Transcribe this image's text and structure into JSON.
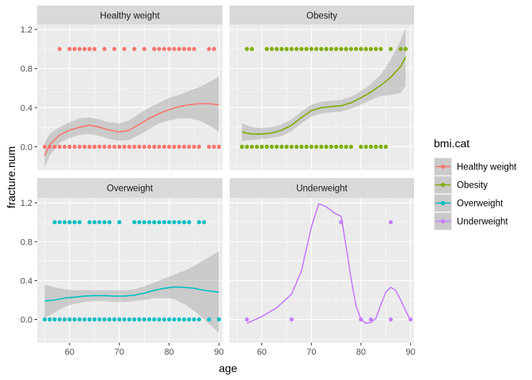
{
  "chart_data": {
    "type": "scatter",
    "facet_by": "bmi.cat",
    "xlabel": "age",
    "ylabel": "fracture.num",
    "xlim": [
      53.5,
      90.7
    ],
    "ylim": [
      -0.24,
      1.25
    ],
    "x_ticks": [
      60,
      70,
      80,
      90
    ],
    "y_ticks": [
      0.0,
      0.4,
      0.8,
      1.2
    ],
    "x_tick_labels": [
      "60",
      "70",
      "80",
      "90"
    ],
    "y_tick_labels": [
      "0.0",
      "0.4",
      "0.8",
      "1.2"
    ],
    "grid": true,
    "legend": {
      "title": "bmi.cat",
      "position": "right",
      "items": [
        "Healthy weight",
        "Obesity",
        "Overweight",
        "Underweight"
      ]
    },
    "panels": [
      {
        "name": "Healthy weight",
        "color": "#F8766D",
        "points_one": [
          58,
          60,
          61,
          62,
          63,
          64,
          65,
          67,
          69,
          71,
          73,
          75,
          77,
          78,
          79,
          80,
          81,
          82,
          83,
          84,
          85,
          88,
          89
        ],
        "points_zero": [
          55,
          56,
          57,
          58,
          59,
          60,
          61,
          62,
          63,
          64,
          65,
          66,
          67,
          68,
          69,
          70,
          71,
          72,
          73,
          74,
          75,
          76,
          77,
          78,
          79,
          80,
          81,
          82,
          83,
          84,
          85,
          86,
          88,
          89,
          90
        ],
        "smooth": [
          [
            55,
            -0.09
          ],
          [
            56,
            0.02
          ],
          [
            58,
            0.12
          ],
          [
            60,
            0.17
          ],
          [
            62,
            0.2
          ],
          [
            64,
            0.22
          ],
          [
            66,
            0.2
          ],
          [
            68,
            0.17
          ],
          [
            70,
            0.15
          ],
          [
            72,
            0.17
          ],
          [
            74,
            0.23
          ],
          [
            76,
            0.29
          ],
          [
            78,
            0.34
          ],
          [
            80,
            0.38
          ],
          [
            82,
            0.41
          ],
          [
            84,
            0.43
          ],
          [
            86,
            0.44
          ],
          [
            88,
            0.44
          ],
          [
            90,
            0.43
          ]
        ],
        "band_upper": [
          [
            55,
            0.04
          ],
          [
            56,
            0.13
          ],
          [
            58,
            0.2
          ],
          [
            60,
            0.25
          ],
          [
            62,
            0.29
          ],
          [
            64,
            0.3
          ],
          [
            66,
            0.28
          ],
          [
            68,
            0.25
          ],
          [
            70,
            0.24
          ],
          [
            72,
            0.27
          ],
          [
            74,
            0.34
          ],
          [
            76,
            0.4
          ],
          [
            78,
            0.45
          ],
          [
            80,
            0.5
          ],
          [
            82,
            0.53
          ],
          [
            84,
            0.57
          ],
          [
            86,
            0.61
          ],
          [
            88,
            0.66
          ],
          [
            90,
            0.72
          ]
        ],
        "band_lower": [
          [
            55,
            -0.22
          ],
          [
            56,
            -0.09
          ],
          [
            58,
            0.04
          ],
          [
            60,
            0.09
          ],
          [
            62,
            0.12
          ],
          [
            64,
            0.13
          ],
          [
            66,
            0.11
          ],
          [
            68,
            0.08
          ],
          [
            70,
            0.06
          ],
          [
            72,
            0.07
          ],
          [
            74,
            0.12
          ],
          [
            76,
            0.18
          ],
          [
            78,
            0.24
          ],
          [
            80,
            0.27
          ],
          [
            82,
            0.29
          ],
          [
            84,
            0.29
          ],
          [
            86,
            0.27
          ],
          [
            88,
            0.22
          ],
          [
            90,
            0.15
          ]
        ]
      },
      {
        "name": "Obesity",
        "color": "#7CAE00",
        "points_one": [
          57,
          58,
          61,
          62,
          63,
          64,
          65,
          66,
          67,
          68,
          69,
          70,
          71,
          72,
          73,
          74,
          75,
          76,
          77,
          78,
          79,
          80,
          81,
          82,
          83,
          84,
          86,
          88,
          89
        ],
        "points_zero": [
          56,
          57,
          58,
          59,
          60,
          61,
          62,
          63,
          64,
          65,
          66,
          67,
          68,
          69,
          70,
          71,
          72,
          73,
          74,
          75,
          76,
          77,
          78,
          80,
          81,
          82,
          83,
          84,
          85
        ],
        "smooth": [
          [
            56,
            0.15
          ],
          [
            58,
            0.13
          ],
          [
            60,
            0.13
          ],
          [
            62,
            0.14
          ],
          [
            64,
            0.17
          ],
          [
            66,
            0.22
          ],
          [
            68,
            0.3
          ],
          [
            70,
            0.37
          ],
          [
            72,
            0.4
          ],
          [
            74,
            0.41
          ],
          [
            76,
            0.42
          ],
          [
            78,
            0.45
          ],
          [
            80,
            0.5
          ],
          [
            82,
            0.56
          ],
          [
            84,
            0.63
          ],
          [
            86,
            0.71
          ],
          [
            88,
            0.82
          ],
          [
            89,
            0.92
          ]
        ],
        "band_upper": [
          [
            56,
            0.24
          ],
          [
            58,
            0.2
          ],
          [
            60,
            0.19
          ],
          [
            62,
            0.2
          ],
          [
            64,
            0.23
          ],
          [
            66,
            0.28
          ],
          [
            68,
            0.36
          ],
          [
            70,
            0.43
          ],
          [
            72,
            0.46
          ],
          [
            74,
            0.47
          ],
          [
            76,
            0.48
          ],
          [
            78,
            0.51
          ],
          [
            80,
            0.57
          ],
          [
            82,
            0.64
          ],
          [
            84,
            0.74
          ],
          [
            86,
            0.89
          ],
          [
            88,
            1.09
          ],
          [
            89,
            1.22
          ]
        ],
        "band_lower": [
          [
            56,
            0.06
          ],
          [
            58,
            0.07
          ],
          [
            60,
            0.08
          ],
          [
            62,
            0.09
          ],
          [
            64,
            0.11
          ],
          [
            66,
            0.16
          ],
          [
            68,
            0.24
          ],
          [
            70,
            0.31
          ],
          [
            72,
            0.34
          ],
          [
            74,
            0.35
          ],
          [
            76,
            0.36
          ],
          [
            78,
            0.39
          ],
          [
            80,
            0.43
          ],
          [
            82,
            0.48
          ],
          [
            84,
            0.52
          ],
          [
            86,
            0.53
          ],
          [
            88,
            0.55
          ],
          [
            89,
            0.62
          ]
        ]
      },
      {
        "name": "Overweight",
        "color": "#00BFC4",
        "points_one": [
          57,
          58,
          59,
          60,
          61,
          62,
          64,
          65,
          66,
          67,
          68,
          70,
          73,
          74,
          75,
          76,
          77,
          78,
          79,
          80,
          81,
          82,
          83,
          84,
          86,
          87
        ],
        "points_zero": [
          55,
          56,
          57,
          58,
          59,
          60,
          61,
          62,
          63,
          64,
          65,
          66,
          67,
          68,
          69,
          70,
          71,
          72,
          73,
          74,
          75,
          76,
          77,
          78,
          79,
          80,
          81,
          82,
          83,
          84,
          85,
          86,
          88,
          90
        ],
        "smooth": [
          [
            55,
            0.19
          ],
          [
            57,
            0.2
          ],
          [
            59,
            0.22
          ],
          [
            61,
            0.23
          ],
          [
            63,
            0.24
          ],
          [
            65,
            0.245
          ],
          [
            67,
            0.245
          ],
          [
            69,
            0.24
          ],
          [
            71,
            0.24
          ],
          [
            73,
            0.25
          ],
          [
            75,
            0.27
          ],
          [
            77,
            0.3
          ],
          [
            79,
            0.32
          ],
          [
            81,
            0.335
          ],
          [
            83,
            0.33
          ],
          [
            85,
            0.32
          ],
          [
            87,
            0.3
          ],
          [
            90,
            0.28
          ]
        ],
        "band_upper": [
          [
            55,
            0.36
          ],
          [
            57,
            0.33
          ],
          [
            59,
            0.31
          ],
          [
            61,
            0.3
          ],
          [
            63,
            0.3
          ],
          [
            65,
            0.3
          ],
          [
            67,
            0.3
          ],
          [
            69,
            0.3
          ],
          [
            71,
            0.3
          ],
          [
            73,
            0.31
          ],
          [
            75,
            0.34
          ],
          [
            77,
            0.38
          ],
          [
            79,
            0.42
          ],
          [
            81,
            0.46
          ],
          [
            83,
            0.5
          ],
          [
            85,
            0.55
          ],
          [
            87,
            0.61
          ],
          [
            90,
            0.7
          ]
        ],
        "band_lower": [
          [
            55,
            0.02
          ],
          [
            57,
            0.07
          ],
          [
            59,
            0.13
          ],
          [
            61,
            0.16
          ],
          [
            63,
            0.18
          ],
          [
            65,
            0.19
          ],
          [
            67,
            0.19
          ],
          [
            69,
            0.18
          ],
          [
            71,
            0.18
          ],
          [
            73,
            0.19
          ],
          [
            75,
            0.2
          ],
          [
            77,
            0.22
          ],
          [
            79,
            0.22
          ],
          [
            81,
            0.21
          ],
          [
            83,
            0.16
          ],
          [
            85,
            0.09
          ],
          [
            87,
            0.0
          ],
          [
            90,
            -0.14
          ]
        ]
      },
      {
        "name": "Underweight",
        "color": "#C77CFF",
        "points_one": [
          76,
          86
        ],
        "points_zero": [
          57,
          66,
          80,
          82,
          86,
          90
        ],
        "smooth": [
          [
            57,
            -0.04
          ],
          [
            60,
            0.03
          ],
          [
            63,
            0.12
          ],
          [
            66,
            0.26
          ],
          [
            68,
            0.5
          ],
          [
            70,
            0.95
          ],
          [
            71.5,
            1.19
          ],
          [
            73,
            1.16
          ],
          [
            74.5,
            1.1
          ],
          [
            76,
            1.06
          ],
          [
            77,
            0.75
          ],
          [
            78,
            0.42
          ],
          [
            79,
            0.14
          ],
          [
            80,
            0.0
          ],
          [
            81,
            -0.04
          ],
          [
            82,
            -0.03
          ],
          [
            83,
            0.01
          ],
          [
            84,
            0.15
          ],
          [
            85,
            0.28
          ],
          [
            86,
            0.33
          ],
          [
            87,
            0.3
          ],
          [
            88,
            0.2
          ],
          [
            89,
            0.09
          ],
          [
            90,
            -0.01
          ]
        ]
      }
    ]
  }
}
